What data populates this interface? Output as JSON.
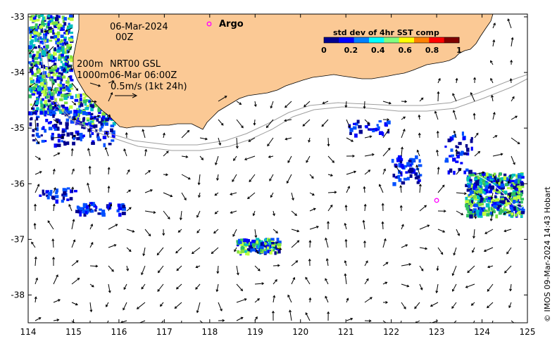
{
  "map": {
    "date_label": "06-Mar-2024",
    "time_label": "00Z",
    "isobath_label_1": "200m",
    "isobath_label_2": "1000m",
    "product_label": "NRT00 GSL",
    "product_time": "06-Mar 06:00Z",
    "scale_label": "0.5m/s (1kt 24h)",
    "argo_label": "Argo",
    "credit": "© IMOS 09-Mar-2024 14:43 Hobart",
    "land_color": "#fbc995",
    "ocean_color": "#ffffff",
    "argo_color": "#ff00ff"
  },
  "axes": {
    "x_ticks": [
      "114",
      "115",
      "116",
      "117",
      "118",
      "119",
      "120",
      "121",
      "122",
      "123",
      "124",
      "125"
    ],
    "y_ticks": [
      "-33",
      "-34",
      "-35",
      "-36",
      "-37",
      "-38"
    ]
  },
  "colorbar": {
    "title": "std dev of 4hr SST comp",
    "ticks": [
      "0",
      "0.2",
      "0.4",
      "0.6",
      "0.8",
      "1"
    ],
    "colors": [
      "#00008f",
      "#0000ff",
      "#0080ff",
      "#00ffff",
      "#80ff80",
      "#ffff00",
      "#ff8000",
      "#ff0000",
      "#800000"
    ]
  },
  "argo_float": {
    "lon": 123.0,
    "lat": -36.3
  }
}
